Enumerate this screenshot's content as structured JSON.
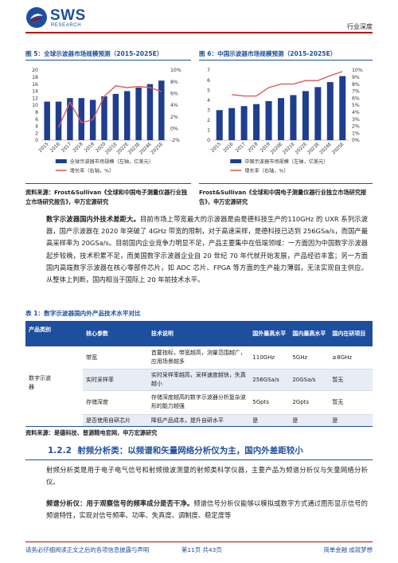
{
  "header": {
    "logo_text": "SWS",
    "logo_sub": "RESEARCH",
    "category": "行业深度"
  },
  "figure5": {
    "title": "图 5：全球示波器市场规模预测（2015-2025E）",
    "source": "资料来源：Frost&Sullivan《全球和中国电子测量仪器行业独立市场研究报告》，申万宏源研究",
    "chart_data": {
      "type": "bar",
      "categories": [
        "2015",
        "2016",
        "2017",
        "2018",
        "2019",
        "2020",
        "2021E",
        "2022E",
        "2023E",
        "2024E",
        "2025E"
      ],
      "series": [
        {
          "name": "全球示波器市场规模（左轴，亿美元）",
          "kind": "bar",
          "axis": "left",
          "color": "#1f3e8e",
          "values": [
            11.0,
            11.0,
            12.0,
            12.0,
            11.5,
            12.5,
            13.2,
            14.0,
            15.0,
            16.0,
            17.0
          ]
        },
        {
          "name": "增长率（右轴，%）",
          "kind": "line",
          "axis": "right",
          "color": "#e05a5a",
          "values": [
            null,
            0.2,
            4.5,
            1.0,
            1.5,
            5.5,
            7.3,
            7.0,
            7.2,
            7.0,
            6.3
          ]
        }
      ],
      "ylim_left": [
        0,
        20
      ],
      "yticks_left": [
        "0",
        "2",
        "4",
        "6",
        "8",
        "10",
        "12",
        "14",
        "16",
        "18",
        "20"
      ],
      "ylim_right": [
        -2,
        10
      ],
      "yticks_right": [
        "-2%",
        "0%",
        "2%",
        "4%",
        "6%",
        "8%",
        "10%"
      ],
      "legend_position": "bottom",
      "grid": false
    }
  },
  "figure6": {
    "title": "图 6：中国示波器市场规模预测（2015-2025E）",
    "source": "Frost&Sullivan《全球和中国电子测量仪器行业独立市场研究报告》，申万宏源研究",
    "chart_data": {
      "type": "bar",
      "categories": [
        "2015",
        "2016",
        "2017",
        "2018",
        "2019",
        "2020E",
        "2021E",
        "2022E",
        "2023E",
        "2024E",
        "2025E"
      ],
      "series": [
        {
          "name": "中国示波器市场规模（左轴，亿美元）",
          "kind": "bar",
          "axis": "left",
          "color": "#1f3e8e",
          "values": [
            3.0,
            3.2,
            3.4,
            3.6,
            3.9,
            4.2,
            4.5,
            4.9,
            5.3,
            5.8,
            6.4
          ]
        },
        {
          "name": "增长率（右轴，%）",
          "kind": "line",
          "axis": "right",
          "color": "#e05a5a",
          "values": [
            null,
            6.5,
            6.3,
            6.3,
            7.5,
            8.0,
            8.0,
            8.5,
            8.5,
            9.2,
            9.8
          ]
        }
      ],
      "ylim_left": [
        0,
        7
      ],
      "yticks_left": [
        "0",
        "1",
        "2",
        "3",
        "4",
        "5",
        "6",
        "7"
      ],
      "ylim_right": [
        0,
        10
      ],
      "yticks_right": [
        "0%",
        "1%",
        "2%",
        "3%",
        "4%",
        "5%",
        "6%",
        "7%",
        "8%",
        "9%",
        "10%"
      ],
      "legend_position": "bottom",
      "grid": false
    }
  },
  "paragraph1": {
    "bold": "数字示波器国内外技术差距大。",
    "text": "目前市场上带宽最大的示波器是由是德科技生产的110GHz 的 UXR 系列示波器，国产示波器在 2020 年突破了 4GHz 带宽的限制，对于高速采样，是德科技已达到 256GSa/s，而国产最高采样率为 20GSa/s。目前国内企业竞争力明显不足，产品主要集中在低端领域：一方面因为中国数字示波器起步较晚，技术积累不足，而美国数字示波器企业自 20 世纪 70 年代就开始发展，产品经验丰富；另一方面国内高端数字示波器在核心零部件芯片，如 ADC 芯片、FPGA 等方面的生产能力薄弱，无法实现自主供应。从整体上判断，国内相当于国际上 20 年前技术水平。"
  },
  "table1": {
    "title": "表 1：数字示波器国内外产品技术水平对比",
    "headers": [
      "产品类别",
      "核心参数",
      "技术说明",
      "国外最高水平",
      "国内最高水平",
      "国内在研项目"
    ],
    "category": "数字示波器",
    "rows": [
      {
        "param": "带宽",
        "desc": "首要指标，带宽越高，测量范围越广，应用场景越多",
        "foreign": "110GHz",
        "domestic": "5GHz",
        "research": "≥8GHz"
      },
      {
        "param": "实时采样率",
        "desc": "实时采样率越高，采样速度越快，失真越小",
        "foreign": "256GSa/s",
        "domestic": "20GSa/s",
        "research": "暂无"
      },
      {
        "param": "存储深度",
        "desc": "存储深度越高的数字示波器分析复杂波形的能力越强",
        "foreign": "5Gpts",
        "domestic": "2Gpts",
        "research": "暂无"
      },
      {
        "param": "是否使用自研芯片",
        "desc": "降低产品成本，提升自研水平",
        "foreign": "是",
        "domestic": "是",
        "research": "是"
      }
    ],
    "source": "资料来源：是德科技、普源精电官网，申万宏源研究"
  },
  "section": {
    "number": "1.2.2",
    "title": "射频分析类：以频谱和矢量网络分析仪为主，国内外差距较小"
  },
  "paragraph2": {
    "text": "射频分析类是用于电子电气信号和射频微波测量的射频类科学仪器，主要产品为频谱分析仪与矢量网络分析仪。"
  },
  "paragraph3": {
    "bold": "频谱分析仪：用于观察信号的频率成分是否干净。",
    "text": "频谱信号分析仪能够以模拟或数字方式通过图形显示信号的频谱特性，实现对信号频率、功率、失真度、调制度、稳定度等"
  },
  "footer": {
    "left": "请务必仔细阅读正文之后的各项信息披露与声明",
    "center": "第11页 共43页",
    "right": "简单金融 成就梦想"
  },
  "colors": {
    "brand_blue": "#1e4f9e",
    "accent_red": "#c00000",
    "bar_blue": "#1f3e8e",
    "line_red": "#e05a5a"
  }
}
